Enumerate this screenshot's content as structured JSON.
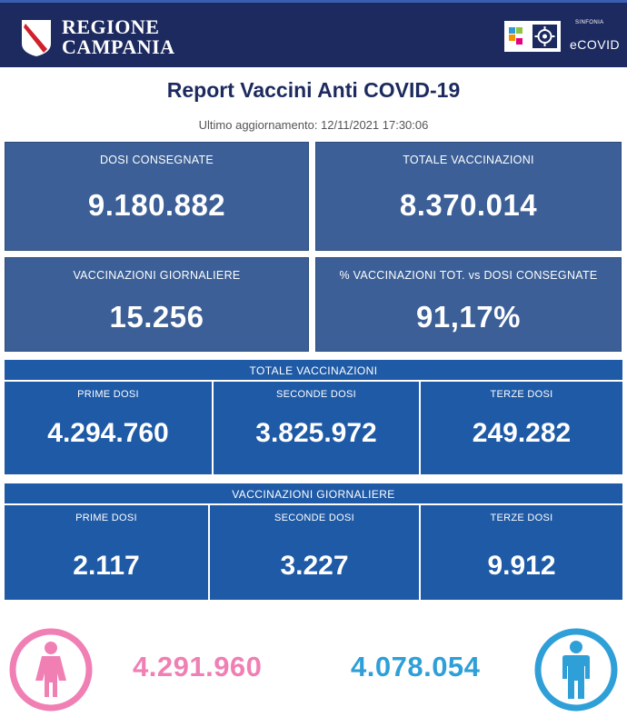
{
  "header": {
    "region_line1": "REGIONE",
    "region_line2": "CAMPANIA",
    "partner_small": "SINFONIA",
    "partner_name": "eCOVID"
  },
  "title": "Report Vaccini Anti COVID-19",
  "updated": "Ultimo aggiornamento: 12/11/2021  17:30:06",
  "cards": [
    {
      "label": "DOSI  CONSEGNATE",
      "value": "9.180.882"
    },
    {
      "label": "TOTALE VACCINAZIONI",
      "value": "8.370.014"
    },
    {
      "label": "VACCINAZIONI GIORNALIERE",
      "value": "15.256"
    },
    {
      "label": "% VACCINAZIONI TOT. vs DOSI CONSEGNATE",
      "value": "91,17%"
    }
  ],
  "totale_panel": {
    "heading": "TOTALE VACCINAZIONI",
    "cells": [
      {
        "label": "PRIME DOSI",
        "value": "4.294.760"
      },
      {
        "label": "SECONDE DOSI",
        "value": "3.825.972"
      },
      {
        "label": "TERZE DOSI",
        "value": "249.282"
      }
    ]
  },
  "giornaliere_panel": {
    "heading": "VACCINAZIONI GIORNALIERE",
    "cells": [
      {
        "label": "PRIME DOSI",
        "value": "2.117"
      },
      {
        "label": "SECONDE DOSI",
        "value": "3.227"
      },
      {
        "label": "TERZE DOSI",
        "value": "9.912"
      }
    ]
  },
  "gender": {
    "female_value": "4.291.960",
    "male_value": "4.078.054",
    "female_color": "#f07fb4",
    "male_color": "#2f9fd8"
  }
}
